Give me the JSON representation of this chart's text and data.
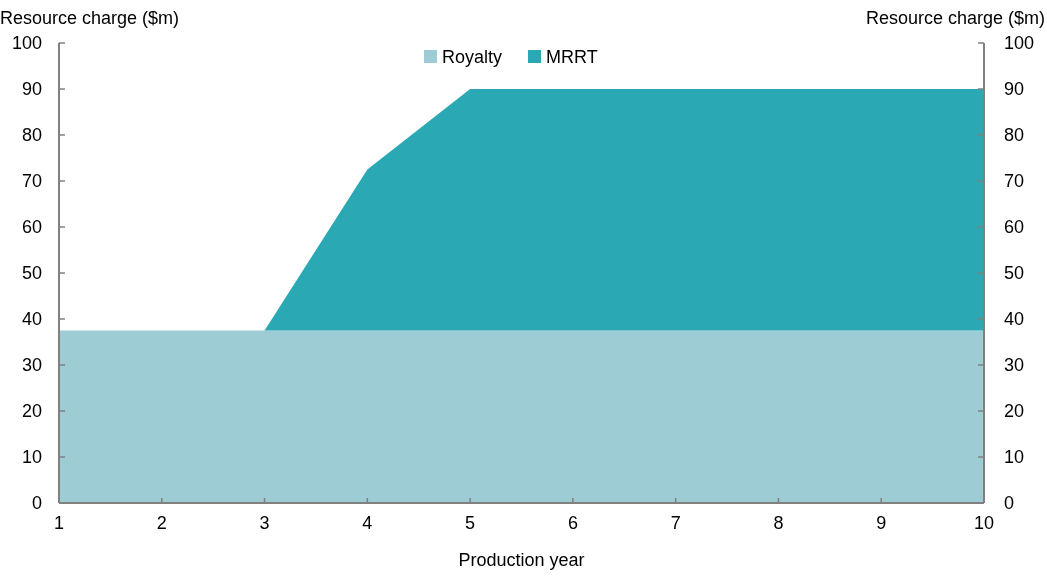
{
  "chart_data": {
    "type": "area",
    "stacked": true,
    "ylabel": "Resource charge ($m)",
    "y2label": "Resource charge ($m)",
    "xlabel": "Production year",
    "x": [
      1,
      2,
      3,
      4,
      5,
      6,
      7,
      8,
      9,
      10
    ],
    "series": [
      {
        "name": "Royalty",
        "color": "#9dccd4",
        "values": [
          37.5,
          37.5,
          37.5,
          37.5,
          37.5,
          37.5,
          37.5,
          37.5,
          37.5,
          37.5
        ]
      },
      {
        "name": "MRRT",
        "color": "#2aa8b4",
        "values": [
          0,
          0,
          0,
          35,
          52.5,
          52.5,
          52.5,
          52.5,
          52.5,
          52.5
        ]
      }
    ],
    "xlim": [
      1,
      10
    ],
    "xticks": [
      1,
      2,
      3,
      4,
      5,
      6,
      7,
      8,
      9,
      10
    ],
    "ylim": [
      0,
      100
    ],
    "yticks": [
      0,
      10,
      20,
      30,
      40,
      50,
      60,
      70,
      80,
      90,
      100
    ],
    "y2lim": [
      0,
      100
    ],
    "y2ticks": [
      0,
      10,
      20,
      30,
      40,
      50,
      60,
      70,
      80,
      90,
      100
    ],
    "grid": false,
    "legend": "top"
  }
}
